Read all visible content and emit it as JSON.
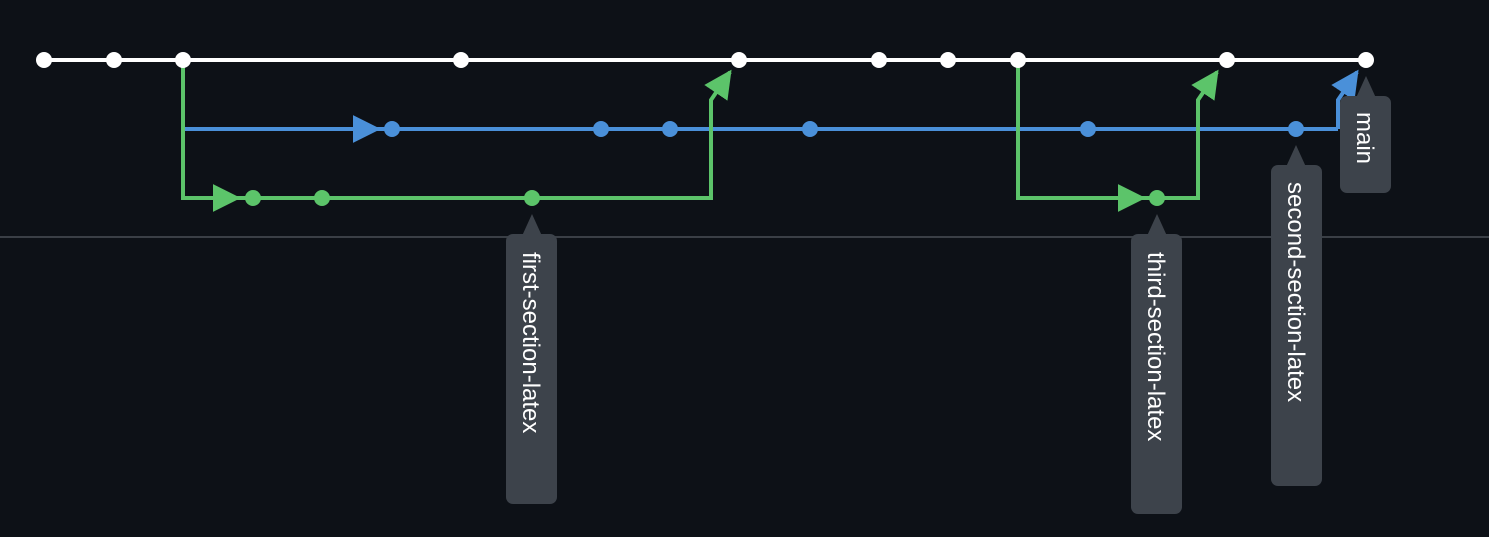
{
  "colors": {
    "background": "#0d1117",
    "divider": "#3a3f46",
    "main": "#ffffff",
    "blue": "#4a90d9",
    "green": "#5cc46a",
    "label_bg": "#3d434b",
    "label_text": "#ffffff"
  },
  "branches": [
    {
      "name": "main",
      "lane": 0,
      "color": "main"
    },
    {
      "name": "second-section-latex",
      "lane": 1,
      "color": "blue"
    },
    {
      "name": "first-section-latex",
      "lane": 2,
      "color": "green"
    },
    {
      "name": "third-section-latex",
      "lane": 2,
      "color": "green"
    }
  ],
  "labels": {
    "main": "main",
    "second": "second-section-latex",
    "first": "first-section-latex",
    "third": "third-section-latex"
  }
}
